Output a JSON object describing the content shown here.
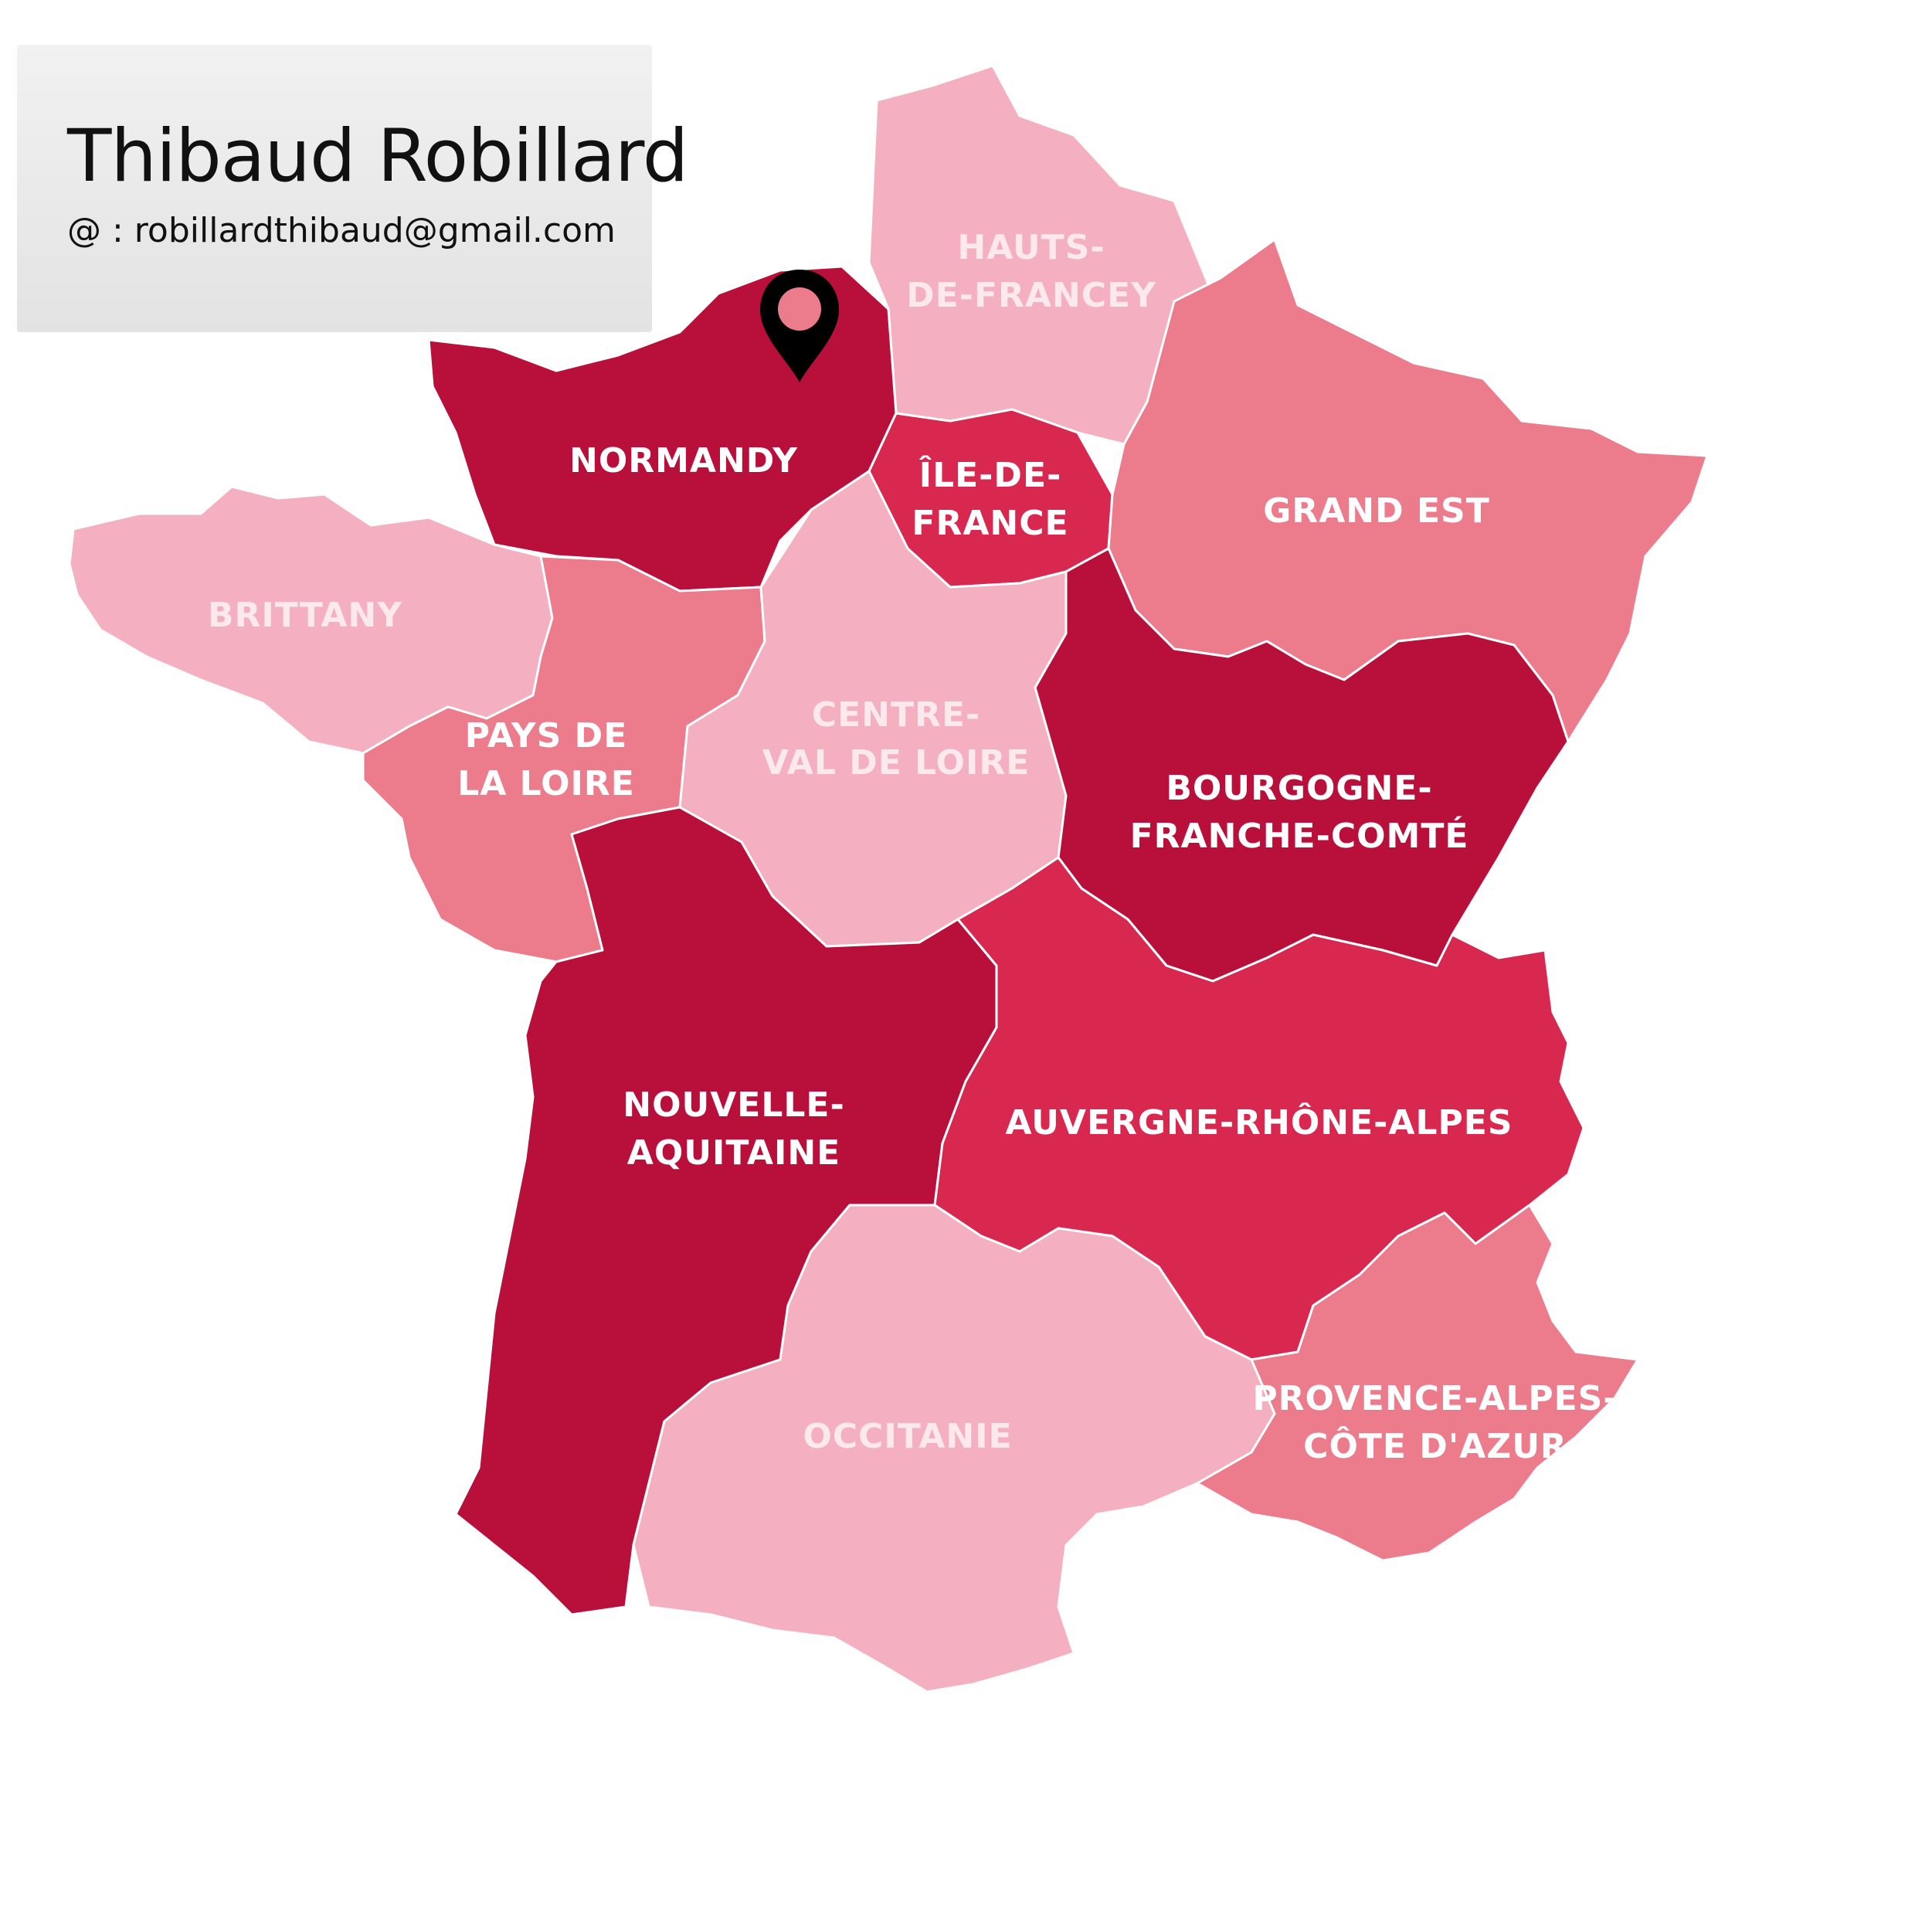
{
  "card": {
    "name": "Thibaud Robillard",
    "email": "@ : robillardthibaud@gmail.com"
  },
  "colors": {
    "dark": "#b8103a",
    "medium": "#d8284f",
    "light": "#ec7b8c",
    "pale": "#f4b0c0",
    "pin": "#000000",
    "pin_dot": "#ec7b8c"
  },
  "map": {
    "marker": {
      "icon": "location-pin-icon",
      "region": "NORMANDY"
    },
    "regions": [
      {
        "id": "hauts-de-france",
        "lines": [
          "HAUTS-",
          "DE-FRANCEY"
        ],
        "shade": "pale"
      },
      {
        "id": "normandy",
        "lines": [
          "NORMANDY"
        ],
        "shade": "dark"
      },
      {
        "id": "ile-de-france",
        "lines": [
          "ÎLE-DE-",
          "FRANCE"
        ],
        "shade": "medium"
      },
      {
        "id": "grand-est",
        "lines": [
          "GRAND EST"
        ],
        "shade": "light"
      },
      {
        "id": "brittany",
        "lines": [
          "BRITTANY"
        ],
        "shade": "pale"
      },
      {
        "id": "pays-de-la-loire",
        "lines": [
          "PAYS DE",
          "LA LOIRE"
        ],
        "shade": "light"
      },
      {
        "id": "centre-val-de-loire",
        "lines": [
          "CENTRE-",
          "VAL DE LOIRE"
        ],
        "shade": "pale"
      },
      {
        "id": "bourgogne-franche-comte",
        "lines": [
          "BOURGOGNE-",
          "FRANCHE-COMTÉ"
        ],
        "shade": "dark"
      },
      {
        "id": "nouvelle-aquitaine",
        "lines": [
          "NOUVELLE-",
          "AQUITAINE"
        ],
        "shade": "dark"
      },
      {
        "id": "auvergne-rhone-alpes",
        "lines": [
          "AUVERGNE-RHÔNE-ALPES"
        ],
        "shade": "medium"
      },
      {
        "id": "occitanie",
        "lines": [
          "OCCITANIE"
        ],
        "shade": "pale"
      },
      {
        "id": "provence-alpes-cote-dazur",
        "lines": [
          "PROVENCE-ALPES-",
          "CÔTE D'AZUR"
        ],
        "shade": "light"
      }
    ]
  }
}
